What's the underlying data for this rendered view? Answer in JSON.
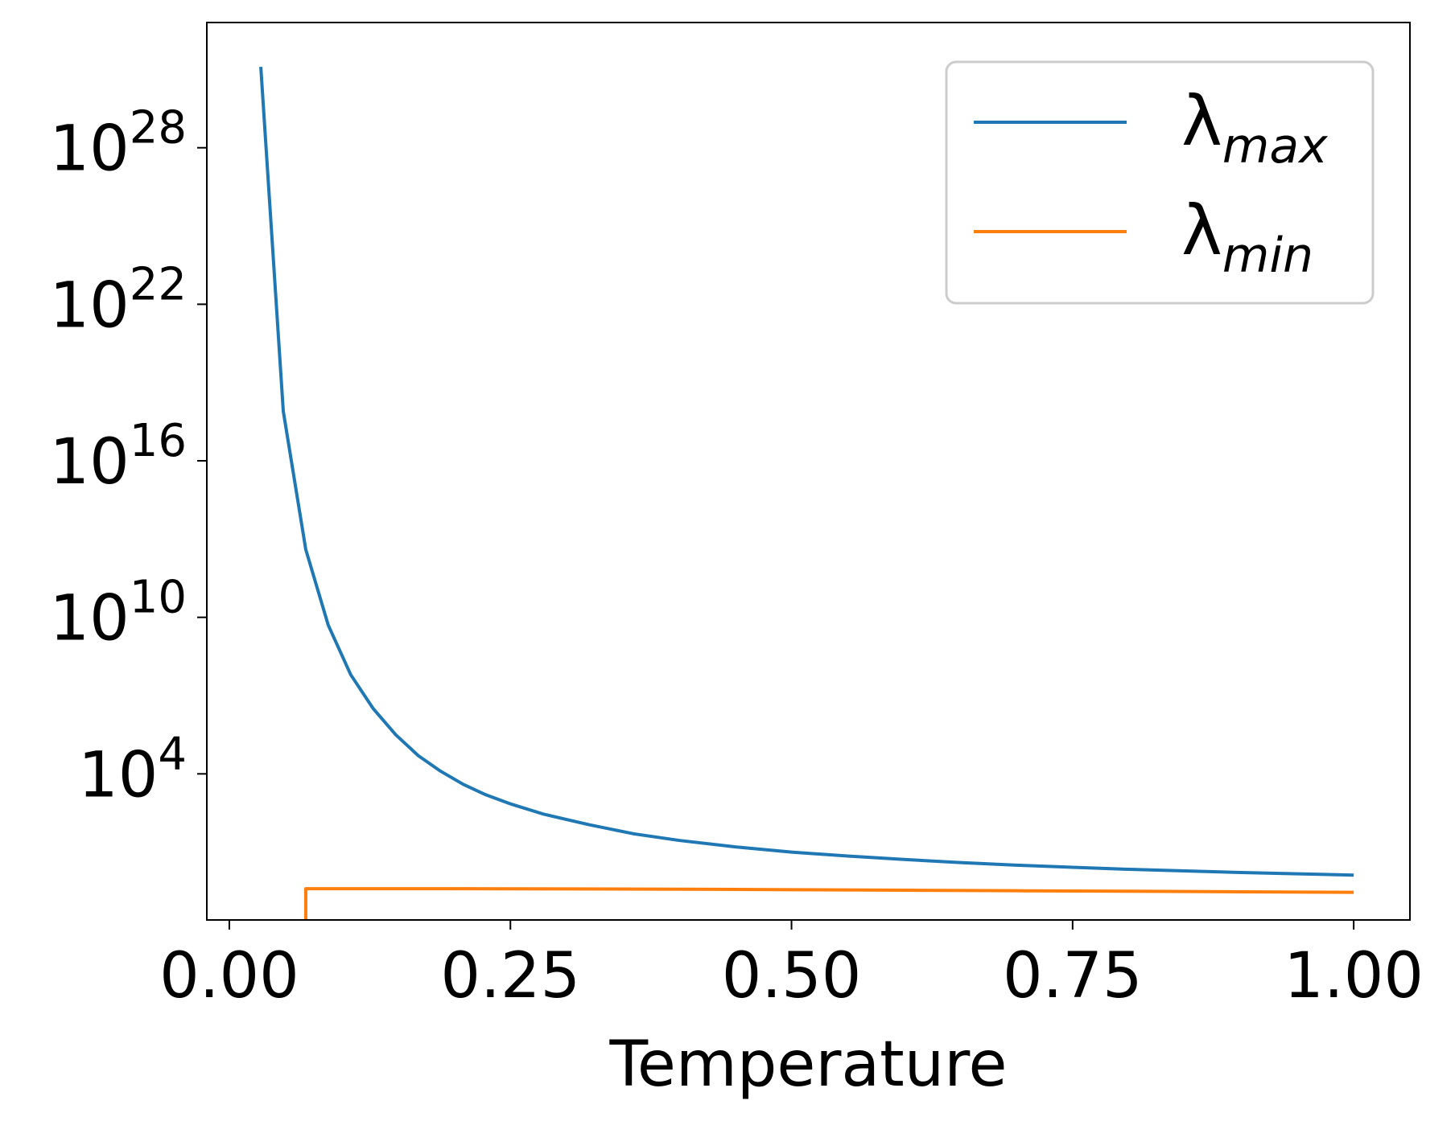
{
  "chart_data": {
    "type": "line",
    "title": "",
    "xlabel": "Temperature",
    "ylabel": "",
    "yscale": "log",
    "xlim": [
      -0.02,
      1.05
    ],
    "ylim_log10": [
      -1.6,
      32.8
    ],
    "xticks": [
      {
        "value": 0.0,
        "label": "0.00"
      },
      {
        "value": 0.25,
        "label": "0.25"
      },
      {
        "value": 0.5,
        "label": "0.50"
      },
      {
        "value": 0.75,
        "label": "0.75"
      },
      {
        "value": 1.0,
        "label": "1.00"
      }
    ],
    "yticks": [
      {
        "log10": 4,
        "base": "10",
        "exp": "4"
      },
      {
        "log10": 10,
        "base": "10",
        "exp": "10"
      },
      {
        "log10": 16,
        "base": "10",
        "exp": "16"
      },
      {
        "log10": 22,
        "base": "10",
        "exp": "22"
      },
      {
        "log10": 28,
        "base": "10",
        "exp": "28"
      }
    ],
    "grid": false,
    "legend_position": "upper right",
    "series": [
      {
        "name": "λ",
        "subscript": "max",
        "color": "#1f77b4",
        "x": [
          0.028,
          0.048,
          0.068,
          0.088,
          0.108,
          0.128,
          0.148,
          0.168,
          0.188,
          0.208,
          0.228,
          0.25,
          0.28,
          0.32,
          0.36,
          0.4,
          0.45,
          0.5,
          0.55,
          0.6,
          0.65,
          0.7,
          0.75,
          0.8,
          0.85,
          0.9,
          0.95,
          1.0
        ],
        "y_log10": [
          31.1,
          17.9,
          12.6,
          9.7,
          7.8,
          6.5,
          5.5,
          4.7,
          4.1,
          3.6,
          3.2,
          2.85,
          2.45,
          2.05,
          1.7,
          1.45,
          1.2,
          1.0,
          0.85,
          0.72,
          0.6,
          0.5,
          0.42,
          0.34,
          0.28,
          0.22,
          0.17,
          0.12
        ]
      },
      {
        "name": "λ",
        "subscript": "min",
        "color": "#ff7f0e",
        "x": [
          0.068,
          0.068,
          0.1,
          0.2,
          0.3,
          0.4,
          0.5,
          0.6,
          0.7,
          0.8,
          0.9,
          1.0
        ],
        "y_log10": [
          -1.6,
          -0.4,
          -0.4,
          -0.4,
          -0.41,
          -0.42,
          -0.44,
          -0.46,
          -0.48,
          -0.5,
          -0.52,
          -0.54
        ]
      }
    ]
  }
}
